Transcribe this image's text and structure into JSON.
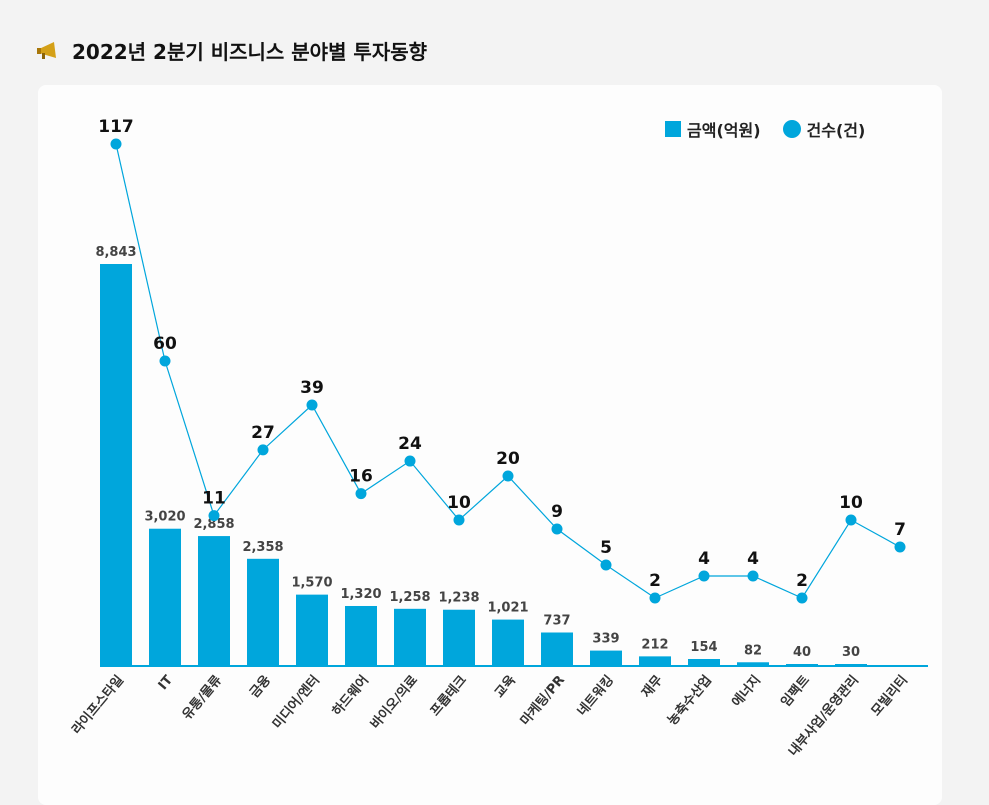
{
  "title": "2022년 2분기 비즈니스 분야별 투자동향",
  "title_icon": "megaphone-icon",
  "chart_data": {
    "type": "bar+line",
    "categories": [
      "라이프스타일",
      "IT",
      "유통/물류",
      "금융",
      "미디어/엔터",
      "하드웨어",
      "바이오/의료",
      "프롭테크",
      "교육",
      "마케팅/PR",
      "네트워킹",
      "재무",
      "농축수산업",
      "에너지",
      "임팩트",
      "내부사업/운영관리",
      "모빌리티"
    ],
    "series": [
      {
        "name": "금액(억원)",
        "type": "bar",
        "values": [
          8843,
          3020,
          2858,
          2358,
          1570,
          1320,
          1258,
          1238,
          1021,
          737,
          339,
          212,
          154,
          82,
          40,
          30,
          null
        ],
        "labels": [
          "8,843",
          "3,020",
          "2,858",
          "2,358",
          "1,570",
          "1,320",
          "1,258",
          "1,238",
          "1,021",
          "737",
          "339",
          "212",
          "154",
          "82",
          "40",
          "30",
          ""
        ]
      },
      {
        "name": "건수(건)",
        "type": "line",
        "values": [
          117,
          60,
          11,
          27,
          39,
          16,
          24,
          10,
          20,
          9,
          5,
          2,
          4,
          4,
          2,
          10,
          7
        ]
      }
    ],
    "legend": "top-right",
    "colors": {
      "bar": "#00a6dc",
      "line": "#00a6dc"
    },
    "grid": false
  }
}
